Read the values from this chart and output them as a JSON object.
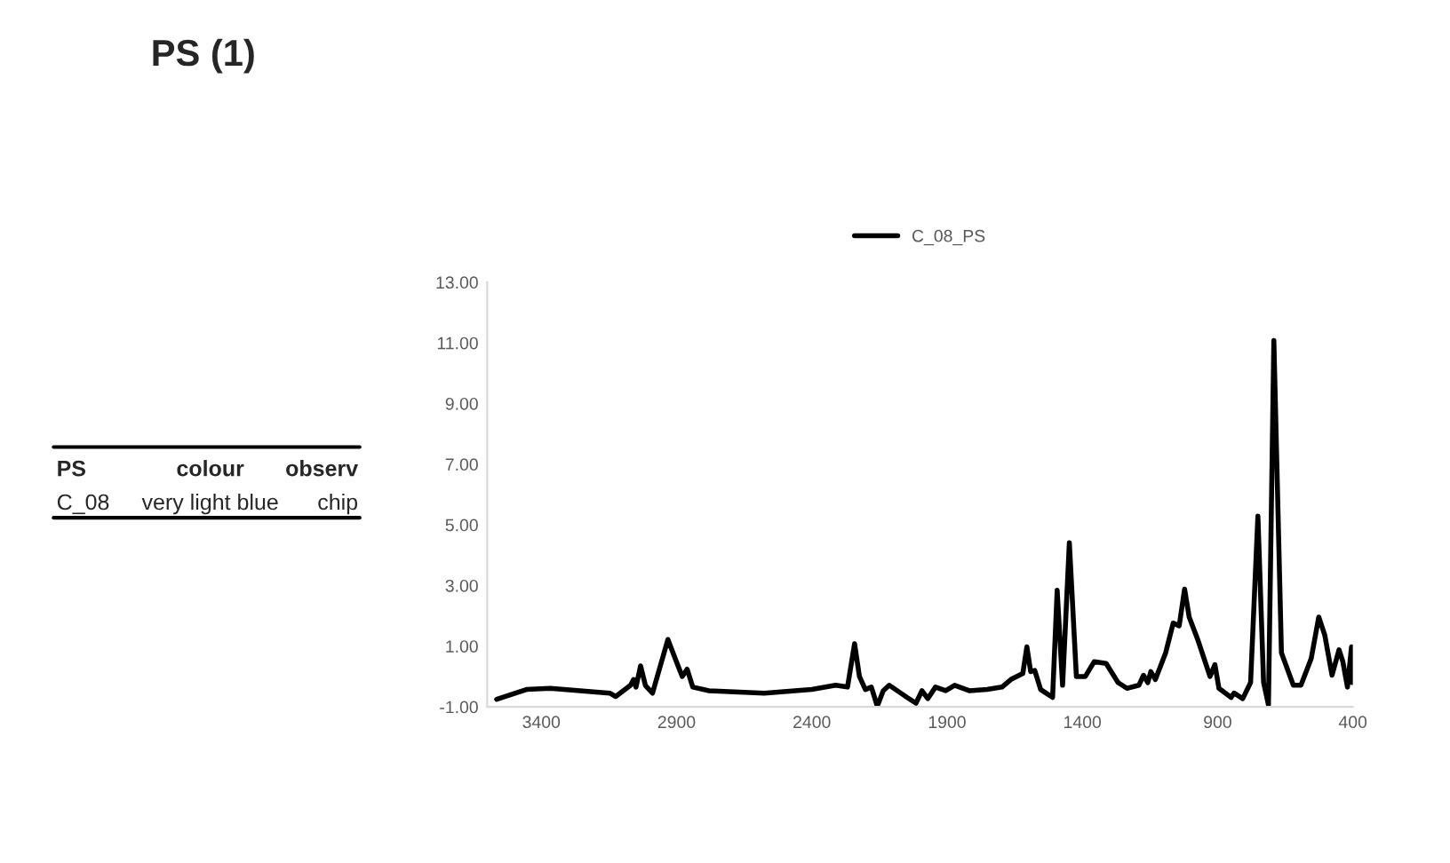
{
  "chart_data": {
    "type": "line",
    "title": "PS (1)",
    "annotations": [
      "PS",
      "colour",
      "observ",
      "C_08",
      "very light blue",
      "chip"
    ],
    "series": [
      {
        "name": "C_08_PS",
        "color": "#000000",
        "x": [
          3565,
          3455,
          3367,
          3147,
          3125,
          3070,
          3059,
          3050,
          3033,
          3015,
          2989,
          2932,
          2905,
          2879,
          2861,
          2840,
          2780,
          2576,
          2400,
          2312,
          2268,
          2242,
          2224,
          2202,
          2180,
          2158,
          2136,
          2114,
          2048,
          2015,
          1993,
          1971,
          1943,
          1905,
          1872,
          1818,
          1752,
          1697,
          1664,
          1620,
          1605,
          1591,
          1576,
          1554,
          1510,
          1493,
          1473,
          1448,
          1422,
          1389,
          1356,
          1312,
          1268,
          1235,
          1191,
          1174,
          1158,
          1147,
          1130,
          1092,
          1064,
          1042,
          1022,
          1005,
          972,
          928,
          910,
          895,
          850,
          839,
          807,
          778,
          751,
          730,
          712,
          692,
          664,
          620,
          592,
          554,
          526,
          504,
          477,
          451,
          437,
          420,
          405,
          403
        ],
        "values": [
          -0.75,
          -0.43,
          -0.39,
          -0.55,
          -0.66,
          -0.29,
          -0.1,
          -0.35,
          0.35,
          -0.3,
          -0.55,
          1.22,
          0.59,
          0.0,
          0.24,
          -0.35,
          -0.47,
          -0.55,
          -0.43,
          -0.29,
          -0.35,
          1.08,
          0.0,
          -0.43,
          -0.35,
          -0.98,
          -0.47,
          -0.29,
          -0.69,
          -0.88,
          -0.47,
          -0.73,
          -0.35,
          -0.47,
          -0.29,
          -0.47,
          -0.43,
          -0.35,
          -0.1,
          0.1,
          0.98,
          0.16,
          0.2,
          -0.43,
          -0.69,
          2.84,
          -0.29,
          4.41,
          0.0,
          0.0,
          0.49,
          0.43,
          -0.2,
          -0.39,
          -0.29,
          0.04,
          -0.2,
          0.16,
          -0.1,
          0.78,
          1.76,
          1.67,
          2.88,
          1.96,
          1.18,
          0.0,
          0.39,
          -0.39,
          -0.69,
          -0.55,
          -0.73,
          -0.2,
          5.29,
          -0.2,
          -0.94,
          11.08,
          0.78,
          -0.29,
          -0.29,
          0.59,
          1.96,
          1.37,
          0.04,
          0.88,
          0.49,
          -0.35,
          0.98,
          -0.2
        ]
      }
    ],
    "xlim": [
      3600,
      400
    ],
    "xticks": [
      3400,
      2900,
      2400,
      1900,
      1400,
      900,
      400
    ],
    "ylim": [
      -1,
      13
    ],
    "yticks": [
      {
        "value": -1,
        "label": "-1.00"
      },
      {
        "value": 1,
        "label": "1.00"
      },
      {
        "value": 3,
        "label": "3.00"
      },
      {
        "value": 5,
        "label": "5.00"
      },
      {
        "value": 7,
        "label": "7.00"
      },
      {
        "value": 9,
        "label": "9.00"
      },
      {
        "value": 11,
        "label": "11.00"
      },
      {
        "value": 13,
        "label": "13.00"
      }
    ],
    "grid": false,
    "legend": "top",
    "marker": "none",
    "line_style": "solid"
  }
}
